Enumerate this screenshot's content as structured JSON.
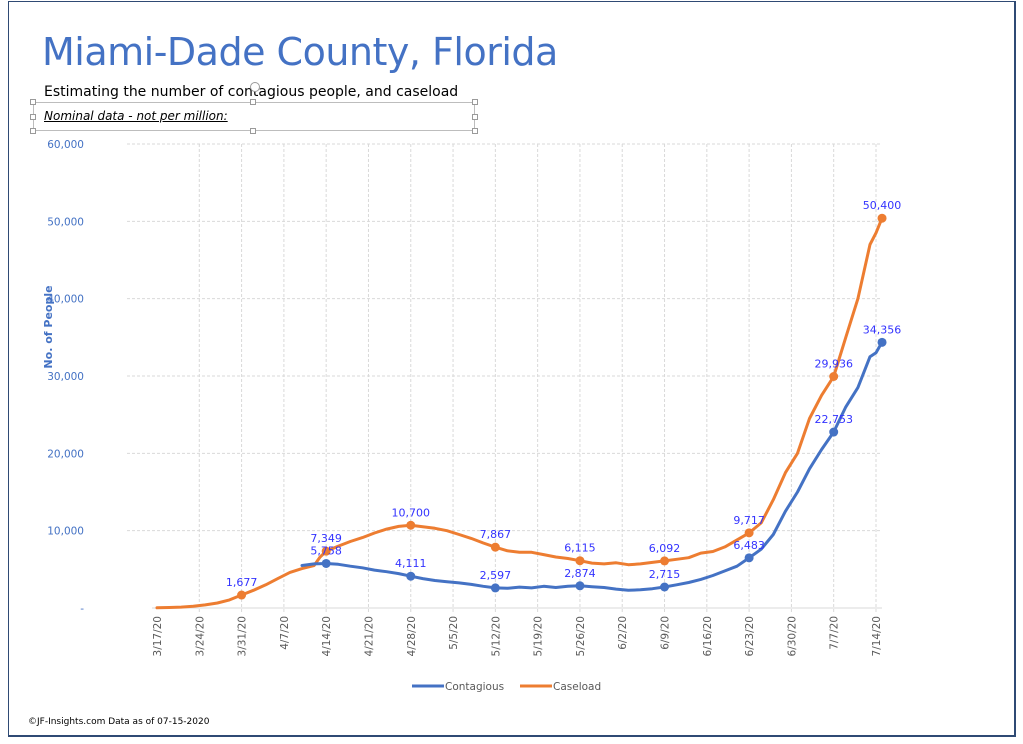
{
  "page": {
    "title": "Miami-Dade County, Florida",
    "subtitle": "Estimating  the number of contagious people, and caseload",
    "note": "Nominal data - not per million:",
    "footer": "©JF-Insights.com  Data as of 07-15-2020"
  },
  "colors": {
    "title": "#4472c4",
    "axis_text": "#4472c4",
    "contagious": "#4472c4",
    "caseload": "#ed7d31",
    "data_label": "#3333ff",
    "grid": "#d9d9d9",
    "frame": "#2f4a74"
  },
  "chart_data": {
    "type": "line",
    "title": "Miami-Dade County, Florida",
    "subtitle": "Estimating  the number of contagious people, and caseload",
    "xlabel": "",
    "ylabel": "No. of People",
    "ylim": [
      0,
      60000
    ],
    "yticks": [
      0,
      10000,
      20000,
      30000,
      40000,
      50000,
      60000
    ],
    "ytick_labels": [
      "-",
      "10,000",
      "20,000",
      "30,000",
      "40,000",
      "50,000",
      "60,000"
    ],
    "x_start": "3/17/20",
    "x_end": "7/15/20",
    "xtick_labels": [
      "3/17/20",
      "3/24/20",
      "3/31/20",
      "4/7/20",
      "4/14/20",
      "4/21/20",
      "4/28/20",
      "5/5/20",
      "5/12/20",
      "5/19/20",
      "5/26/20",
      "6/2/20",
      "6/9/20",
      "6/16/20",
      "6/23/20",
      "6/30/20",
      "7/7/20",
      "7/14/20"
    ],
    "grid": true,
    "legend_position": "bottom",
    "series": [
      {
        "name": "Contagious",
        "color": "#4472c4",
        "points": [
          {
            "day": 24,
            "value": 5500
          },
          {
            "day": 26,
            "value": 5700
          },
          {
            "day": 28,
            "value": 5758,
            "label": "5,758"
          },
          {
            "day": 30,
            "value": 5650
          },
          {
            "day": 32,
            "value": 5400
          },
          {
            "day": 34,
            "value": 5200
          },
          {
            "day": 36,
            "value": 4900
          },
          {
            "day": 38,
            "value": 4700
          },
          {
            "day": 40,
            "value": 4450
          },
          {
            "day": 42,
            "value": 4111,
            "label": "4,111"
          },
          {
            "day": 44,
            "value": 3800
          },
          {
            "day": 46,
            "value": 3550
          },
          {
            "day": 48,
            "value": 3400
          },
          {
            "day": 50,
            "value": 3250
          },
          {
            "day": 52,
            "value": 3050
          },
          {
            "day": 54,
            "value": 2800
          },
          {
            "day": 56,
            "value": 2597,
            "label": "2,597"
          },
          {
            "day": 58,
            "value": 2550
          },
          {
            "day": 60,
            "value": 2700
          },
          {
            "day": 62,
            "value": 2600
          },
          {
            "day": 64,
            "value": 2800
          },
          {
            "day": 66,
            "value": 2650
          },
          {
            "day": 68,
            "value": 2800
          },
          {
            "day": 70,
            "value": 2874,
            "label": "2,874"
          },
          {
            "day": 72,
            "value": 2750
          },
          {
            "day": 74,
            "value": 2650
          },
          {
            "day": 76,
            "value": 2450
          },
          {
            "day": 78,
            "value": 2300
          },
          {
            "day": 80,
            "value": 2350
          },
          {
            "day": 82,
            "value": 2500
          },
          {
            "day": 84,
            "value": 2715,
            "label": "2,715"
          },
          {
            "day": 86,
            "value": 3000
          },
          {
            "day": 88,
            "value": 3300
          },
          {
            "day": 90,
            "value": 3700
          },
          {
            "day": 92,
            "value": 4200
          },
          {
            "day": 94,
            "value": 4800
          },
          {
            "day": 96,
            "value": 5400
          },
          {
            "day": 98,
            "value": 6483,
            "label": "6,483"
          },
          {
            "day": 100,
            "value": 7600
          },
          {
            "day": 102,
            "value": 9500
          },
          {
            "day": 104,
            "value": 12500
          },
          {
            "day": 106,
            "value": 15000
          },
          {
            "day": 108,
            "value": 18000
          },
          {
            "day": 110,
            "value": 20500
          },
          {
            "day": 112,
            "value": 22753,
            "label": "22,753"
          },
          {
            "day": 114,
            "value": 26000
          },
          {
            "day": 116,
            "value": 28500
          },
          {
            "day": 118,
            "value": 32500
          },
          {
            "day": 119,
            "value": 33000
          },
          {
            "day": 120,
            "value": 34356,
            "label": "34,356"
          }
        ]
      },
      {
        "name": "Caseload",
        "color": "#ed7d31",
        "points": [
          {
            "day": 0,
            "value": 20
          },
          {
            "day": 2,
            "value": 60
          },
          {
            "day": 4,
            "value": 120
          },
          {
            "day": 6,
            "value": 220
          },
          {
            "day": 8,
            "value": 400
          },
          {
            "day": 10,
            "value": 650
          },
          {
            "day": 12,
            "value": 1050
          },
          {
            "day": 14,
            "value": 1677,
            "label": "1,677"
          },
          {
            "day": 16,
            "value": 2300
          },
          {
            "day": 18,
            "value": 3000
          },
          {
            "day": 20,
            "value": 3800
          },
          {
            "day": 22,
            "value": 4600
          },
          {
            "day": 24,
            "value": 5100
          },
          {
            "day": 26,
            "value": 5500
          },
          {
            "day": 27,
            "value": 6600
          },
          {
            "day": 28,
            "value": 7349,
            "label": "7,349"
          },
          {
            "day": 30,
            "value": 8000
          },
          {
            "day": 32,
            "value": 8600
          },
          {
            "day": 34,
            "value": 9100
          },
          {
            "day": 36,
            "value": 9700
          },
          {
            "day": 38,
            "value": 10200
          },
          {
            "day": 40,
            "value": 10550
          },
          {
            "day": 42,
            "value": 10700,
            "label": "10,700"
          },
          {
            "day": 44,
            "value": 10500
          },
          {
            "day": 46,
            "value": 10300
          },
          {
            "day": 48,
            "value": 10000
          },
          {
            "day": 50,
            "value": 9500
          },
          {
            "day": 52,
            "value": 9000
          },
          {
            "day": 54,
            "value": 8400
          },
          {
            "day": 56,
            "value": 7867,
            "label": "7,867"
          },
          {
            "day": 58,
            "value": 7400
          },
          {
            "day": 60,
            "value": 7200
          },
          {
            "day": 62,
            "value": 7200
          },
          {
            "day": 64,
            "value": 6900
          },
          {
            "day": 66,
            "value": 6600
          },
          {
            "day": 68,
            "value": 6400
          },
          {
            "day": 70,
            "value": 6115,
            "label": "6,115"
          },
          {
            "day": 72,
            "value": 5800
          },
          {
            "day": 74,
            "value": 5700
          },
          {
            "day": 76,
            "value": 5850
          },
          {
            "day": 78,
            "value": 5600
          },
          {
            "day": 80,
            "value": 5700
          },
          {
            "day": 82,
            "value": 5900
          },
          {
            "day": 84,
            "value": 6092,
            "label": "6,092"
          },
          {
            "day": 86,
            "value": 6300
          },
          {
            "day": 88,
            "value": 6500
          },
          {
            "day": 90,
            "value": 7100
          },
          {
            "day": 92,
            "value": 7300
          },
          {
            "day": 94,
            "value": 7900
          },
          {
            "day": 96,
            "value": 8800
          },
          {
            "day": 98,
            "value": 9717,
            "label": "9,717"
          },
          {
            "day": 100,
            "value": 11000
          },
          {
            "day": 102,
            "value": 14000
          },
          {
            "day": 104,
            "value": 17500
          },
          {
            "day": 106,
            "value": 20000
          },
          {
            "day": 108,
            "value": 24500
          },
          {
            "day": 110,
            "value": 27500
          },
          {
            "day": 112,
            "value": 29936,
            "label": "29,936"
          },
          {
            "day": 114,
            "value": 35000
          },
          {
            "day": 116,
            "value": 40000
          },
          {
            "day": 118,
            "value": 47000
          },
          {
            "day": 119,
            "value": 48500
          },
          {
            "day": 120,
            "value": 50400,
            "label": "50,400"
          }
        ]
      }
    ]
  },
  "legend": {
    "items": [
      {
        "label": "Contagious"
      },
      {
        "label": "Caseload"
      }
    ]
  }
}
